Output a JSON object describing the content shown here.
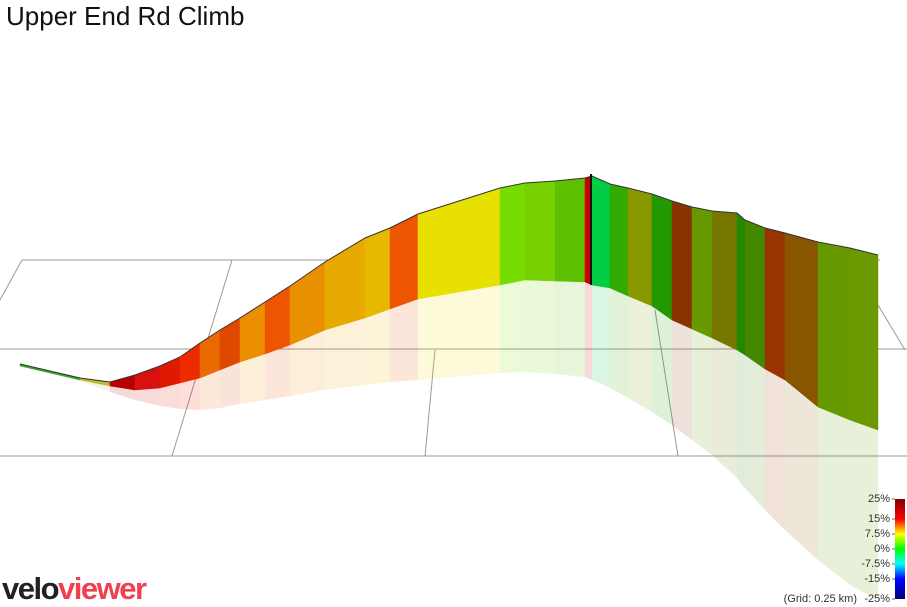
{
  "header": {
    "title": "Upper End Rd Climb"
  },
  "legend": {
    "ticks": [
      {
        "value": 25,
        "label": "25%"
      },
      {
        "value": 15,
        "label": "15%"
      },
      {
        "value": 7.5,
        "label": "7.5%"
      },
      {
        "value": 0,
        "label": "0%"
      },
      {
        "value": -7.5,
        "label": "-7.5%"
      },
      {
        "value": -15,
        "label": "-15%"
      },
      {
        "value": -25,
        "label": "-25%"
      }
    ],
    "grid_note": "(Grid: 0.25 km)"
  },
  "logo": {
    "part1": "velo",
    "part2": "viewer"
  }
}
